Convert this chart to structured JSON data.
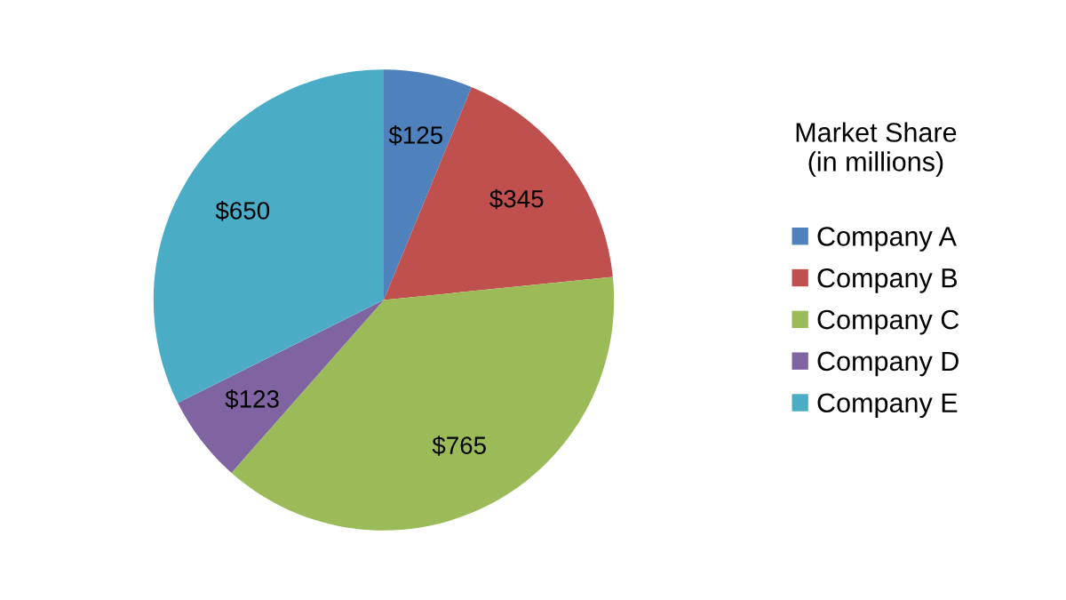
{
  "chart_data": {
    "type": "pie",
    "categories": [
      "Company A",
      "Company B",
      "Company C",
      "Company D",
      "Company E"
    ],
    "values": [
      125,
      345,
      765,
      123,
      650
    ],
    "colors": [
      "#4f81bd",
      "#c0504d",
      "#9bbb59",
      "#8064a2",
      "#4bacc6"
    ],
    "value_labels": [
      "$125",
      "$345",
      "$765",
      "$123",
      "$650"
    ],
    "legend_title": "Market Share\n(in millions)",
    "legend": "right"
  }
}
